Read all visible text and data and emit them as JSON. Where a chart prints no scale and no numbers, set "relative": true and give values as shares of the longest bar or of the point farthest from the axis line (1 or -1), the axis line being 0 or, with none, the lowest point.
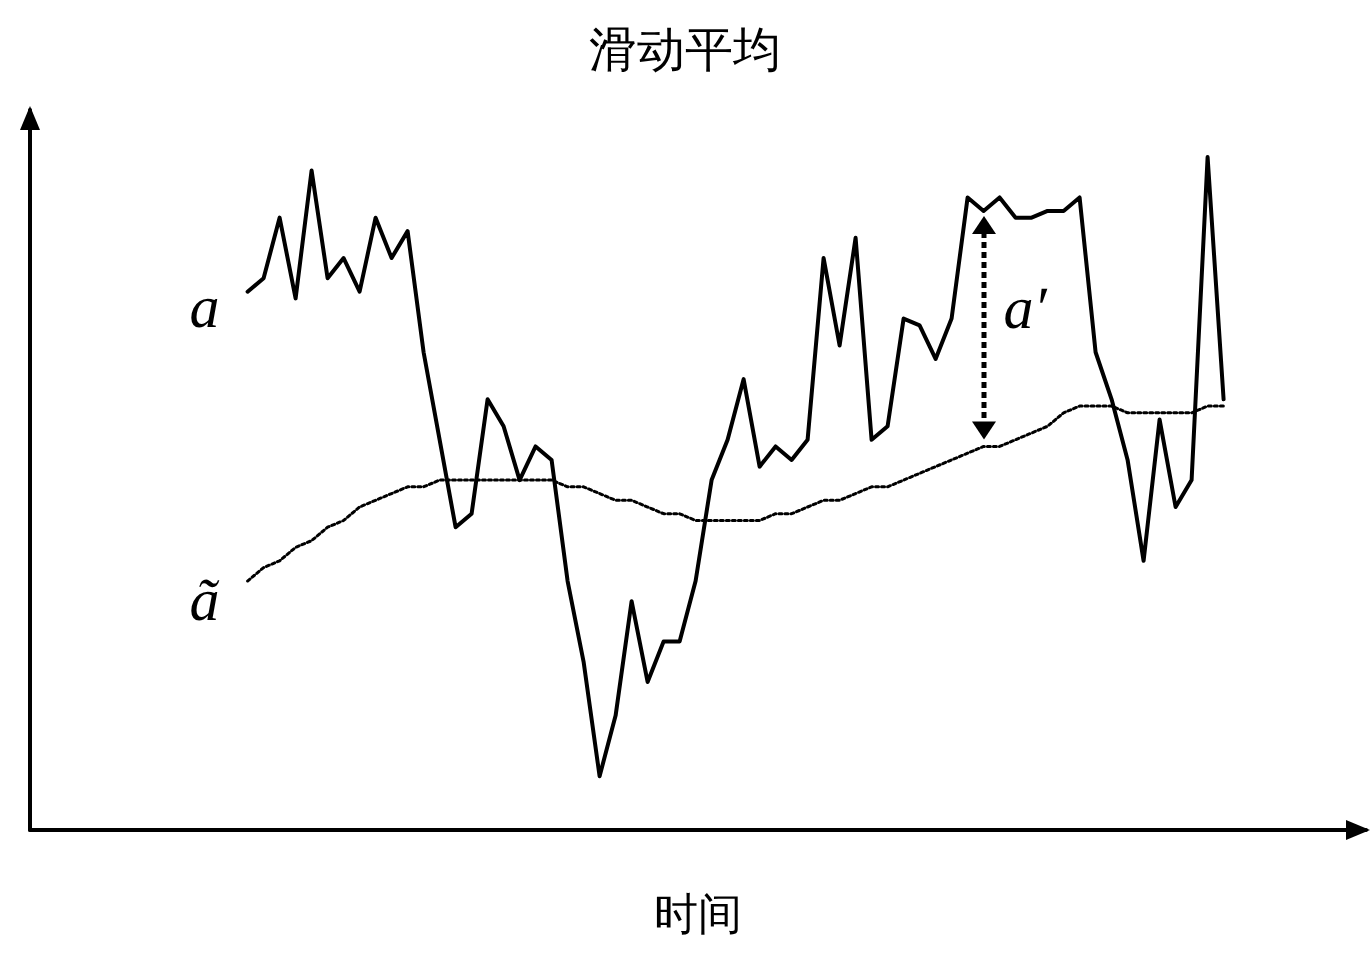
{
  "chart_data": {
    "type": "line",
    "title": "滑动平均",
    "xlabel": "时间",
    "relative": true,
    "marker": "none",
    "grid": false,
    "legend": false,
    "annotations": [
      "a′"
    ],
    "categories": [
      null,
      null,
      null,
      null,
      null,
      null,
      null,
      null,
      null,
      null,
      null,
      null,
      null,
      null,
      null,
      null,
      null,
      null,
      null,
      null,
      null,
      null,
      null,
      null,
      null,
      null,
      null,
      null,
      null,
      null,
      null,
      null,
      null,
      null,
      null,
      null,
      null,
      null,
      null,
      null,
      null,
      null,
      null,
      null,
      null,
      null,
      null,
      null,
      null,
      null,
      null,
      null,
      null,
      null,
      null,
      null,
      null,
      null,
      null,
      null,
      null,
      null
    ],
    "series": [
      {
        "name": "a",
        "color": "#000000",
        "line_style": "solid",
        "values": [
          0.8,
          0.82,
          0.91,
          0.79,
          0.98,
          0.82,
          0.85,
          0.8,
          0.91,
          0.85,
          0.89,
          0.71,
          0.58,
          0.45,
          0.47,
          0.64,
          0.6,
          0.52,
          0.57,
          0.55,
          0.37,
          0.25,
          0.08,
          0.17,
          0.34,
          0.22,
          0.28,
          0.28,
          0.37,
          0.52,
          0.58,
          0.67,
          0.54,
          0.57,
          0.55,
          0.58,
          0.85,
          0.72,
          0.88,
          0.58,
          0.6,
          0.76,
          0.75,
          0.7,
          0.76,
          0.94,
          0.92,
          0.94,
          0.91,
          0.91,
          0.92,
          0.92,
          0.94,
          0.71,
          0.64,
          0.55,
          0.4,
          0.61,
          0.48,
          0.52,
          1,
          0.64
        ]
      },
      {
        "name": "ã",
        "color": "#000000",
        "line_style": "dotted",
        "values": [
          0.37,
          0.39,
          0.4,
          0.42,
          0.43,
          0.45,
          0.46,
          0.48,
          0.49,
          0.5,
          0.51,
          0.51,
          0.52,
          0.52,
          0.52,
          0.52,
          0.52,
          0.52,
          0.52,
          0.52,
          0.51,
          0.51,
          0.5,
          0.49,
          0.49,
          0.48,
          0.47,
          0.47,
          0.46,
          0.46,
          0.46,
          0.46,
          0.46,
          0.47,
          0.47,
          0.48,
          0.49,
          0.49,
          0.5,
          0.51,
          0.51,
          0.52,
          0.53,
          0.54,
          0.55,
          0.56,
          0.57,
          0.57,
          0.58,
          0.59,
          0.6,
          0.62,
          0.63,
          0.63,
          0.63,
          0.62,
          0.62,
          0.62,
          0.62,
          0.62,
          0.63,
          0.63
        ]
      }
    ]
  }
}
